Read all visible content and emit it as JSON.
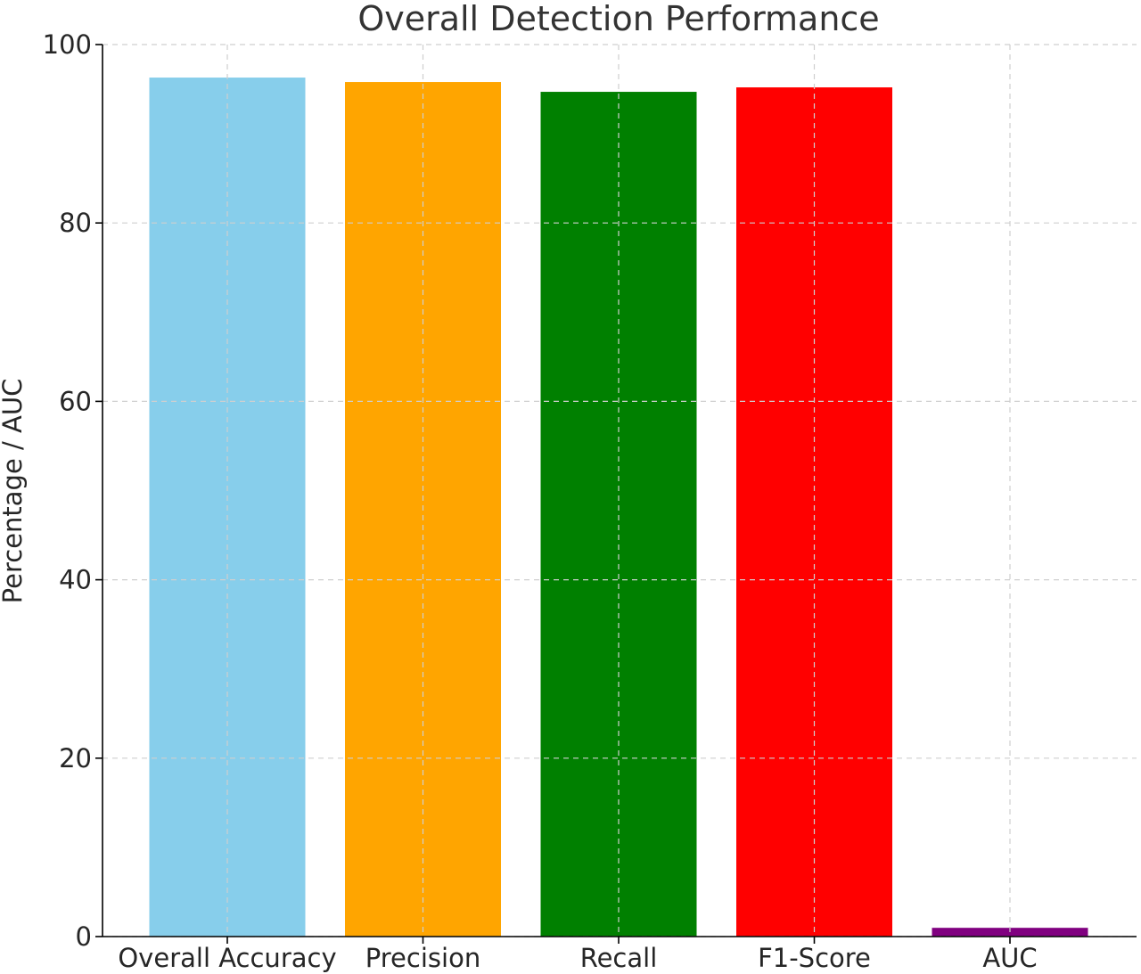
{
  "chart_data": {
    "type": "bar",
    "title": "Overall Detection Performance",
    "xlabel": "",
    "ylabel": "Percentage / AUC",
    "categories": [
      "Overall Accuracy",
      "Precision",
      "Recall",
      "F1-Score",
      "AUC"
    ],
    "values": [
      96.3,
      95.8,
      94.7,
      95.2,
      0.98
    ],
    "colors": [
      "#87ceeb",
      "#ffa500",
      "#008000",
      "#ff0000",
      "#800080"
    ],
    "ylim": [
      0,
      100
    ],
    "yticks": [
      0,
      20,
      40,
      60,
      80,
      100
    ],
    "grid": true,
    "legend": "none"
  }
}
